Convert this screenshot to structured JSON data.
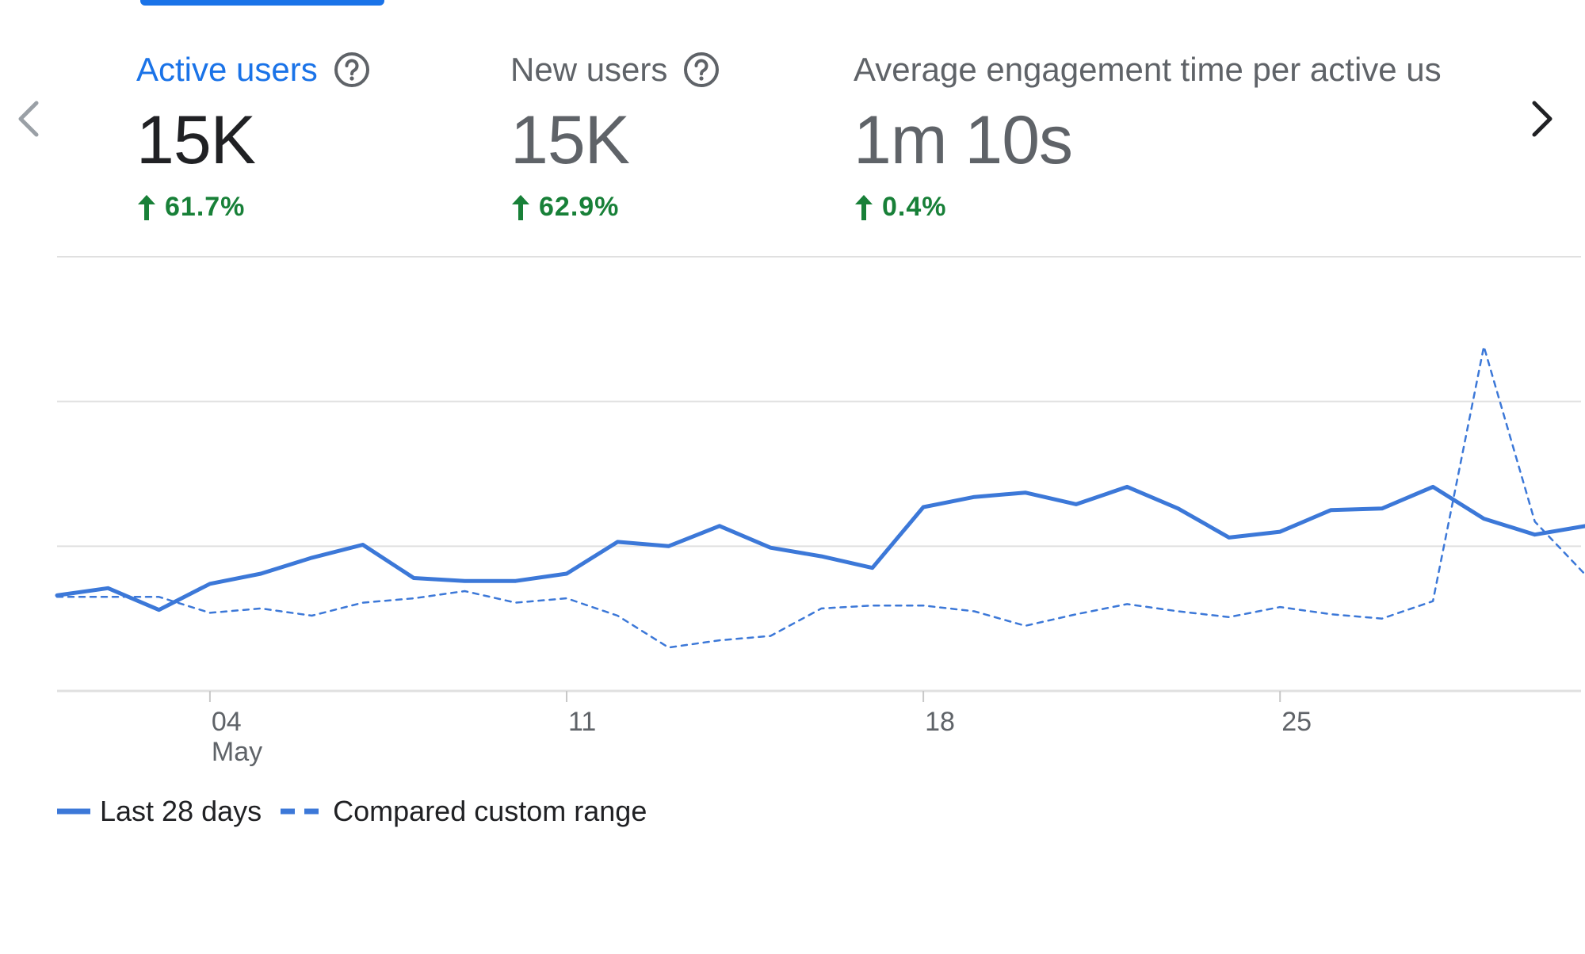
{
  "metrics": [
    {
      "title": "Active users",
      "value": "15K",
      "change": "61.7%",
      "active": true,
      "help": true
    },
    {
      "title": "New users",
      "value": "15K",
      "change": "62.9%",
      "active": false,
      "help": true
    },
    {
      "title": "Average engagement time per active us",
      "value": "1m 10s",
      "change": "0.4%",
      "active": false,
      "help": false
    }
  ],
  "colors": {
    "accent": "#1a73e8",
    "positive": "#188038",
    "series": "#3c78d8",
    "grid": "#e0e0e0"
  },
  "icons": {
    "prev": "chevron-left-icon",
    "next": "chevron-right-icon",
    "help": "help-circle-icon",
    "up": "arrow-up-icon"
  },
  "chart_data": {
    "type": "line",
    "x_ticks": [
      {
        "label": "04",
        "sublabel": "May",
        "index": 3
      },
      {
        "label": "11",
        "sublabel": "",
        "index": 10
      },
      {
        "label": "18",
        "sublabel": "",
        "index": 17
      },
      {
        "label": "25",
        "sublabel": "",
        "index": 24
      }
    ],
    "ylim": [
      0,
      3
    ],
    "grid": true,
    "legend_position": "bottom-left",
    "series": [
      {
        "name": "Last 28 days",
        "style": "solid",
        "values": [
          0.66,
          0.71,
          0.56,
          0.74,
          0.81,
          0.92,
          1.01,
          0.78,
          0.76,
          0.76,
          0.81,
          1.03,
          1.0,
          1.14,
          0.99,
          0.93,
          0.85,
          1.27,
          1.34,
          1.37,
          1.29,
          1.41,
          1.26,
          1.06,
          1.1,
          1.25,
          1.26,
          1.41,
          1.19,
          1.08,
          1.14
        ]
      },
      {
        "name": "Compared custom range",
        "style": "dashed",
        "values": [
          0.65,
          0.65,
          0.65,
          0.54,
          0.57,
          0.52,
          0.61,
          0.64,
          0.69,
          0.61,
          0.64,
          0.52,
          0.3,
          0.35,
          0.38,
          0.57,
          0.59,
          0.59,
          0.55,
          0.45,
          0.53,
          0.6,
          0.55,
          0.51,
          0.58,
          0.53,
          0.5,
          0.62,
          2.38,
          1.17,
          0.8
        ]
      }
    ]
  }
}
